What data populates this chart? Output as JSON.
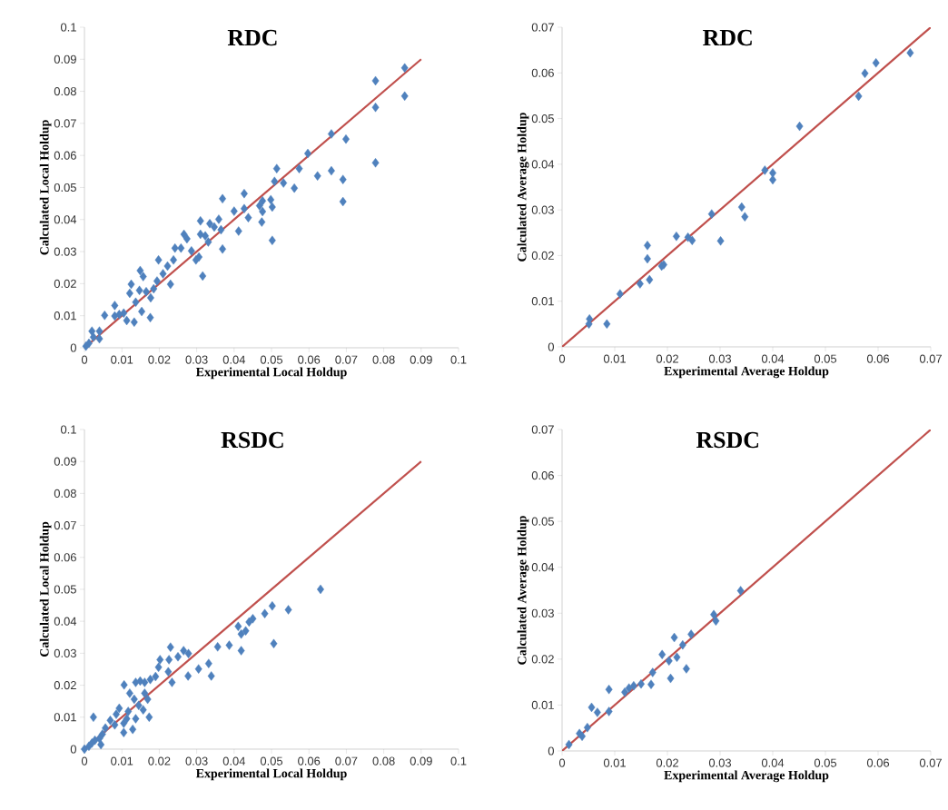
{
  "chart_data": [
    {
      "type": "scatter",
      "title": "RDC",
      "xlabel": "Experimental Local Holdup",
      "ylabel": "Calculated Local Holdup",
      "marker": "diamond",
      "xlim": [
        0,
        0.1
      ],
      "ylim": [
        0,
        0.1
      ],
      "xticks": [
        0,
        0.01,
        0.02,
        0.03,
        0.04,
        0.05,
        0.06,
        0.07,
        0.08,
        0.09,
        0.1
      ],
      "yticks": [
        0,
        0.01,
        0.02,
        0.03,
        0.04,
        0.05,
        0.06,
        0.07,
        0.08,
        0.09,
        0.1
      ],
      "series": [
        {
          "color": "#4f81bd",
          "x": [
            0.0856,
            0.0856,
            0.0778,
            0.0778,
            0.0778,
            0.0699,
            0.0691,
            0.0691,
            0.066,
            0.066,
            0.0623,
            0.0597,
            0.0574,
            0.0561,
            0.0514,
            0.0508,
            0.0532,
            0.0502,
            0.0498,
            0.0502,
            0.0476,
            0.0476,
            0.0474,
            0.0468,
            0.0438,
            0.0427,
            0.0427,
            0.0412,
            0.04,
            0.0369,
            0.0369,
            0.0365,
            0.0359,
            0.0347,
            0.0335,
            0.0331,
            0.0323,
            0.031,
            0.031,
            0.0316,
            0.0306,
            0.0298,
            0.0286,
            0.0274,
            0.0266,
            0.0258,
            0.0242,
            0.0238,
            0.023,
            0.0222,
            0.021,
            0.0198,
            0.0194,
            0.0185,
            0.0177,
            0.0176,
            0.0165,
            0.0157,
            0.0149,
            0.0153,
            0.0147,
            0.0137,
            0.0125,
            0.0121,
            0.0133,
            0.0113,
            0.0105,
            0.0093,
            0.0081,
            0.0081,
            0.0054,
            0.004,
            0.004,
            0.002,
            0.0024,
            0.0012,
            0.0004
          ],
          "values": [
            0.0873,
            0.0785,
            0.0833,
            0.075,
            0.0577,
            0.0651,
            0.0525,
            0.0456,
            0.0667,
            0.0552,
            0.0536,
            0.0606,
            0.0559,
            0.0498,
            0.0559,
            0.0519,
            0.0514,
            0.0335,
            0.0462,
            0.0439,
            0.0458,
            0.0425,
            0.0392,
            0.0443,
            0.0406,
            0.0481,
            0.0434,
            0.0364,
            0.0426,
            0.0465,
            0.0308,
            0.0368,
            0.0401,
            0.0377,
            0.0387,
            0.033,
            0.0349,
            0.0396,
            0.0354,
            0.0224,
            0.0283,
            0.0274,
            0.0302,
            0.034,
            0.0354,
            0.0311,
            0.0311,
            0.0274,
            0.0198,
            0.0255,
            0.0231,
            0.0274,
            0.0208,
            0.0184,
            0.0156,
            0.0094,
            0.0175,
            0.0222,
            0.0241,
            0.0113,
            0.0179,
            0.0142,
            0.0198,
            0.017,
            0.008,
            0.0085,
            0.0108,
            0.0104,
            0.0132,
            0.0099,
            0.0101,
            0.0052,
            0.0028,
            0.0052,
            0.0033,
            0.0014,
            0.0005
          ]
        },
        {
          "type": "line",
          "marker": "none",
          "color": "#c0504d",
          "x": [
            0,
            0.09
          ],
          "values": [
            0,
            0.09
          ]
        }
      ]
    },
    {
      "type": "scatter",
      "title": "RDC",
      "xlabel": "Experimental Average Holdup",
      "ylabel": "Calculated Average Holdup",
      "marker": "diamond",
      "xlim": [
        0,
        0.07
      ],
      "ylim": [
        0,
        0.07
      ],
      "xticks": [
        0,
        0.01,
        0.02,
        0.03,
        0.04,
        0.05,
        0.06,
        0.07
      ],
      "yticks": [
        0,
        0.01,
        0.02,
        0.03,
        0.04,
        0.05,
        0.06,
        0.07
      ],
      "series": [
        {
          "color": "#4f81bd",
          "x": [
            0.0661,
            0.0596,
            0.0575,
            0.0563,
            0.0451,
            0.0385,
            0.04,
            0.04,
            0.0341,
            0.0347,
            0.0284,
            0.0301,
            0.0247,
            0.0239,
            0.0217,
            0.0193,
            0.0189,
            0.0162,
            0.0162,
            0.0166,
            0.0148,
            0.011,
            0.0085,
            0.0052,
            0.0051
          ],
          "values": [
            0.0644,
            0.0622,
            0.0599,
            0.0549,
            0.0483,
            0.0387,
            0.0381,
            0.0366,
            0.0306,
            0.0285,
            0.0291,
            0.0232,
            0.0233,
            0.024,
            0.0242,
            0.018,
            0.0177,
            0.0222,
            0.0193,
            0.0147,
            0.0138,
            0.0116,
            0.005,
            0.0061,
            0.005
          ]
        },
        {
          "type": "line",
          "marker": "none",
          "color": "#c0504d",
          "x": [
            0,
            0.07
          ],
          "values": [
            0,
            0.07
          ]
        }
      ]
    },
    {
      "type": "scatter",
      "title": "RSDC",
      "xlabel": "Experimental Local Holdup",
      "ylabel": "Calculated Local Holdup",
      "marker": "diamond",
      "xlim": [
        0,
        0.1
      ],
      "ylim": [
        0,
        0.1
      ],
      "xticks": [
        0,
        0.01,
        0.02,
        0.03,
        0.04,
        0.05,
        0.06,
        0.07,
        0.08,
        0.09,
        0.1
      ],
      "yticks": [
        0,
        0.01,
        0.02,
        0.03,
        0.04,
        0.05,
        0.06,
        0.07,
        0.08,
        0.09,
        0.1
      ],
      "series": [
        {
          "color": "#4f81bd",
          "x": [
            0.0631,
            0.0545,
            0.0502,
            0.0506,
            0.0482,
            0.045,
            0.044,
            0.0431,
            0.0419,
            0.0411,
            0.0419,
            0.0387,
            0.0356,
            0.0332,
            0.0339,
            0.0305,
            0.0277,
            0.0278,
            0.0265,
            0.025,
            0.023,
            0.0226,
            0.0234,
            0.0224,
            0.0202,
            0.0198,
            0.019,
            0.0176,
            0.0161,
            0.0149,
            0.0137,
            0.0106,
            0.0161,
            0.0169,
            0.0173,
            0.0157,
            0.0145,
            0.0133,
            0.0121,
            0.0117,
            0.0105,
            0.0105,
            0.0093,
            0.0085,
            0.0081,
            0.0069,
            0.0056,
            0.0048,
            0.004,
            0.0044,
            0.0024,
            0.0028,
            0.002,
            0.0012,
            0.0,
            0.0137,
            0.0129,
            0.0113
          ],
          "values": [
            0.05,
            0.0436,
            0.0448,
            0.033,
            0.0424,
            0.0408,
            0.0398,
            0.037,
            0.036,
            0.0384,
            0.0308,
            0.0325,
            0.032,
            0.0268,
            0.0229,
            0.0251,
            0.0229,
            0.0299,
            0.0308,
            0.0289,
            0.0319,
            0.028,
            0.0209,
            0.0242,
            0.028,
            0.0256,
            0.0227,
            0.0218,
            0.0209,
            0.0213,
            0.0209,
            0.0201,
            0.0175,
            0.0156,
            0.01,
            0.0123,
            0.0137,
            0.0156,
            0.0175,
            0.0118,
            0.0081,
            0.0052,
            0.0128,
            0.0109,
            0.0076,
            0.009,
            0.0066,
            0.0047,
            0.0033,
            0.0014,
            0.01,
            0.0028,
            0.0019,
            0.0009,
            0.0,
            0.0095,
            0.0062,
            0.0095
          ]
        },
        {
          "type": "line",
          "marker": "none",
          "color": "#c0504d",
          "x": [
            0,
            0.09
          ],
          "values": [
            0,
            0.09
          ]
        }
      ]
    },
    {
      "type": "scatter",
      "title": "RSDC",
      "xlabel": "Experimental Average Holdup",
      "ylabel": "Calculated Average Holdup",
      "marker": "diamond",
      "xlim": [
        0,
        0.07
      ],
      "ylim": [
        0,
        0.07
      ],
      "xticks": [
        0,
        0.01,
        0.02,
        0.03,
        0.04,
        0.05,
        0.06,
        0.07
      ],
      "yticks": [
        0,
        0.01,
        0.02,
        0.03,
        0.04,
        0.05,
        0.06,
        0.07
      ],
      "series": [
        {
          "color": "#4f81bd",
          "x": [
            0.0339,
            0.0288,
            0.0292,
            0.0245,
            0.0229,
            0.0213,
            0.0218,
            0.0236,
            0.019,
            0.0203,
            0.0206,
            0.0172,
            0.0169,
            0.015,
            0.0136,
            0.0127,
            0.0119,
            0.0089,
            0.0089,
            0.0067,
            0.0056,
            0.0048,
            0.0038,
            0.0033,
            0.0013
          ],
          "values": [
            0.0349,
            0.0297,
            0.0283,
            0.0254,
            0.0231,
            0.0247,
            0.0204,
            0.0179,
            0.021,
            0.0196,
            0.0158,
            0.0171,
            0.0145,
            0.0146,
            0.0142,
            0.0137,
            0.0128,
            0.0134,
            0.0086,
            0.0084,
            0.0095,
            0.0051,
            0.0032,
            0.0038,
            0.0014
          ]
        },
        {
          "type": "line",
          "marker": "none",
          "color": "#c0504d",
          "x": [
            0,
            0.07
          ],
          "values": [
            0,
            0.07
          ]
        }
      ]
    }
  ]
}
